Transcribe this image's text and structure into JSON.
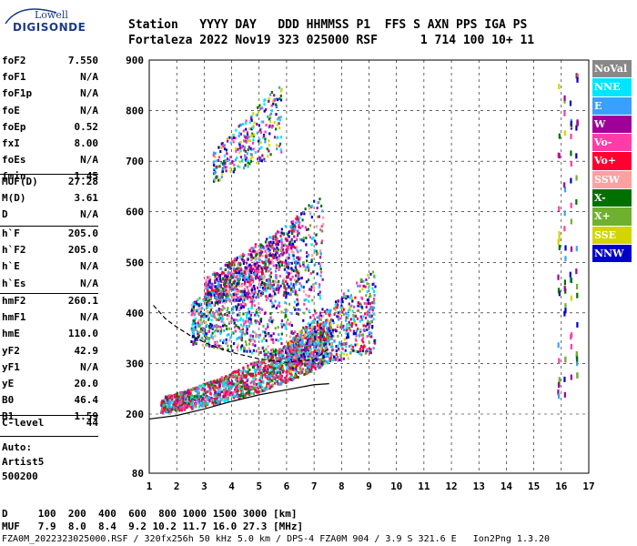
{
  "logo": {
    "line1": "Lowell",
    "line2": "DIGISONDE"
  },
  "header": {
    "row1": "Station   YYYY DAY   DDD HHMMSS P1  FFS S AXN PPS IGA PS",
    "row2": "Fortaleza 2022 Nov19 323 025000 RSF      1 714 100 10+ 11"
  },
  "params": {
    "group1": [
      {
        "k": "foF2",
        "v": "7.550"
      },
      {
        "k": "foF1",
        "v": "N/A"
      },
      {
        "k": "foF1p",
        "v": "N/A"
      },
      {
        "k": "foE",
        "v": "N/A"
      },
      {
        "k": "foEp",
        "v": "0.52"
      },
      {
        "k": "fxI",
        "v": "8.00"
      },
      {
        "k": "foEs",
        "v": "N/A"
      },
      {
        "k": "fmin",
        "v": "1.45"
      }
    ],
    "group2": [
      {
        "k": "MUF(D)",
        "v": "27.28"
      },
      {
        "k": "M(D)",
        "v": "3.61"
      },
      {
        "k": "D",
        "v": "N/A"
      }
    ],
    "group3": [
      {
        "k": "h`F",
        "v": "205.0"
      },
      {
        "k": "h`F2",
        "v": "205.0"
      },
      {
        "k": "h`E",
        "v": "N/A"
      },
      {
        "k": "h`Es",
        "v": "N/A"
      }
    ],
    "group4": [
      {
        "k": "hmF2",
        "v": "260.1"
      },
      {
        "k": "hmF1",
        "v": "N/A"
      },
      {
        "k": "hmE",
        "v": "110.0"
      },
      {
        "k": "yF2",
        "v": "42.9"
      },
      {
        "k": "yF1",
        "v": "N/A"
      },
      {
        "k": "yE",
        "v": "20.0"
      },
      {
        "k": "B0",
        "v": "46.4"
      },
      {
        "k": "B1",
        "v": "1.59"
      }
    ],
    "group5": [
      {
        "k": "C-level",
        "v": "44"
      }
    ]
  },
  "auto": {
    "line1": "Auto:",
    "line2": "Artist5",
    "line3": "500200"
  },
  "muf_table": {
    "row1": "D     100  200  400  600  800 1000 1500 3000 [km]",
    "row2": "MUF   7.9  8.0  8.4  9.2 10.2 11.7 16.0 27.3 [MHz]"
  },
  "footer": "FZA0M_2022323025000.RSF / 320fx256h 50 kHz 5.0 km / DPS-4 FZA0M 904 / 3.9 S 321.6 E   Ion2Png 1.3.20",
  "legend": [
    {
      "label": "NoVal",
      "color": "#888888"
    },
    {
      "label": "NNE",
      "color": "#00e5ff"
    },
    {
      "label": "E",
      "color": "#3aa0ff"
    },
    {
      "label": "W",
      "color": "#a0009a"
    },
    {
      "label": "Vo-",
      "color": "#ff3ca8"
    },
    {
      "label": "Vo+",
      "color": "#ff0030"
    },
    {
      "label": "SSW",
      "color": "#ffa0a0"
    },
    {
      "label": "X-",
      "color": "#007000"
    },
    {
      "label": "X+",
      "color": "#70b030"
    },
    {
      "label": "SSE",
      "color": "#d4d400"
    },
    {
      "label": "NNW",
      "color": "#0000c8"
    }
  ],
  "chart_data": {
    "type": "scatter",
    "title": "",
    "xlabel": "",
    "ylabel": "",
    "xlim": [
      1,
      17
    ],
    "ylim": [
      80,
      900
    ],
    "x_ticks": [
      1,
      2,
      3,
      4,
      5,
      6,
      7,
      8,
      9,
      10,
      11,
      12,
      13,
      14,
      15,
      16,
      17
    ],
    "y_ticks": [
      80,
      200,
      300,
      400,
      500,
      600,
      700,
      800,
      900
    ],
    "grid": "dashed",
    "clusters": [
      {
        "name": "F2 trace",
        "x_range": [
          1.4,
          7.6
        ],
        "y_range": [
          205,
          330
        ],
        "color": "#ff0030"
      },
      {
        "name": "F2 cusp",
        "x_range": [
          6.0,
          9.2
        ],
        "y_range": [
          280,
          470
        ],
        "color": "#ff3ca8"
      },
      {
        "name": "spread F",
        "x_range": [
          2.5,
          7.3
        ],
        "y_range": [
          300,
          640
        ],
        "color": "#3aa0ff"
      },
      {
        "name": "second hop",
        "x_range": [
          3.0,
          6.5
        ],
        "y_range": [
          420,
          600
        ],
        "color": "#a0009a"
      },
      {
        "name": "third hop",
        "x_range": [
          3.3,
          5.8
        ],
        "y_range": [
          660,
          860
        ],
        "color": "#00e5ff"
      },
      {
        "name": "interference",
        "x_range": [
          15.8,
          16.6
        ],
        "y_range": [
          230,
          880
        ],
        "color": "#007000"
      }
    ],
    "profile_curve": {
      "x": [
        1.0,
        2.0,
        3.0,
        4.0,
        5.0,
        6.0,
        7.0,
        7.55
      ],
      "y": [
        190,
        197,
        210,
        225,
        238,
        248,
        258,
        260
      ]
    },
    "dashed_curve": {
      "x": [
        1.15,
        1.6,
        2.0,
        2.5,
        3.0,
        3.5,
        4.0,
        5.0,
        6.0,
        7.0,
        7.55
      ],
      "y": [
        415,
        388,
        372,
        355,
        342,
        331,
        322,
        309,
        302,
        308,
        330
      ]
    }
  }
}
